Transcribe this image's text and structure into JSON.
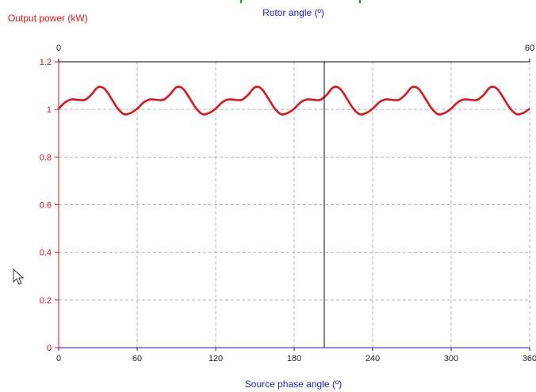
{
  "chart_data": {
    "type": "line",
    "title": "",
    "ylabel": "Output power (kW)",
    "xlabel": "Source phase angle (º)",
    "x2label": "Rotor angle (º)",
    "xlim": [
      0,
      360
    ],
    "ylim": [
      0,
      1.2
    ],
    "x2lim": [
      0,
      60
    ],
    "x_ticks": [
      0,
      60,
      120,
      180,
      240,
      300,
      360
    ],
    "y_ticks": [
      0,
      0.2,
      0.4,
      0.6,
      0.8,
      1,
      1.2
    ],
    "x2_ticks": [
      0,
      60
    ],
    "grid": true,
    "cursor_x": 203,
    "series": [
      {
        "color": "#e8101a",
        "x": [
          0,
          5,
          10,
          15,
          20,
          25,
          30,
          35,
          40,
          45,
          50,
          55,
          60,
          65,
          70,
          75,
          80,
          85,
          90,
          95,
          100,
          105,
          110,
          115,
          120,
          125,
          130,
          135,
          140,
          145,
          150,
          155,
          160,
          165,
          170,
          175,
          180,
          185,
          190,
          195,
          200,
          205,
          210,
          215,
          220,
          225,
          230,
          235,
          240,
          245,
          250,
          255,
          260,
          265,
          270,
          275,
          280,
          285,
          290,
          295,
          300,
          305,
          310,
          315,
          320,
          325,
          330,
          335,
          340,
          345,
          350,
          355,
          360
        ],
        "y": [
          1.003,
          1.03,
          1.042,
          1.04,
          1.04,
          1.062,
          1.093,
          1.087,
          1.048,
          1.005,
          0.98,
          0.985,
          1.003,
          1.03,
          1.042,
          1.04,
          1.04,
          1.062,
          1.093,
          1.087,
          1.048,
          1.005,
          0.98,
          0.985,
          1.003,
          1.03,
          1.042,
          1.04,
          1.04,
          1.062,
          1.093,
          1.087,
          1.048,
          1.005,
          0.98,
          0.985,
          1.003,
          1.03,
          1.042,
          1.04,
          1.04,
          1.062,
          1.093,
          1.087,
          1.048,
          1.005,
          0.98,
          0.985,
          1.003,
          1.03,
          1.042,
          1.04,
          1.04,
          1.062,
          1.093,
          1.087,
          1.048,
          1.005,
          0.98,
          0.985,
          1.003,
          1.03,
          1.042,
          1.04,
          1.04,
          1.062,
          1.093,
          1.087,
          1.048,
          1.005,
          0.98,
          0.985,
          1.003
        ]
      }
    ]
  },
  "colors": {
    "primary_axis": "#e8101a",
    "secondary_axis": "#1a1adc",
    "frame": "#000000"
  },
  "icons": {
    "pointer": "mouse-cursor-icon"
  }
}
